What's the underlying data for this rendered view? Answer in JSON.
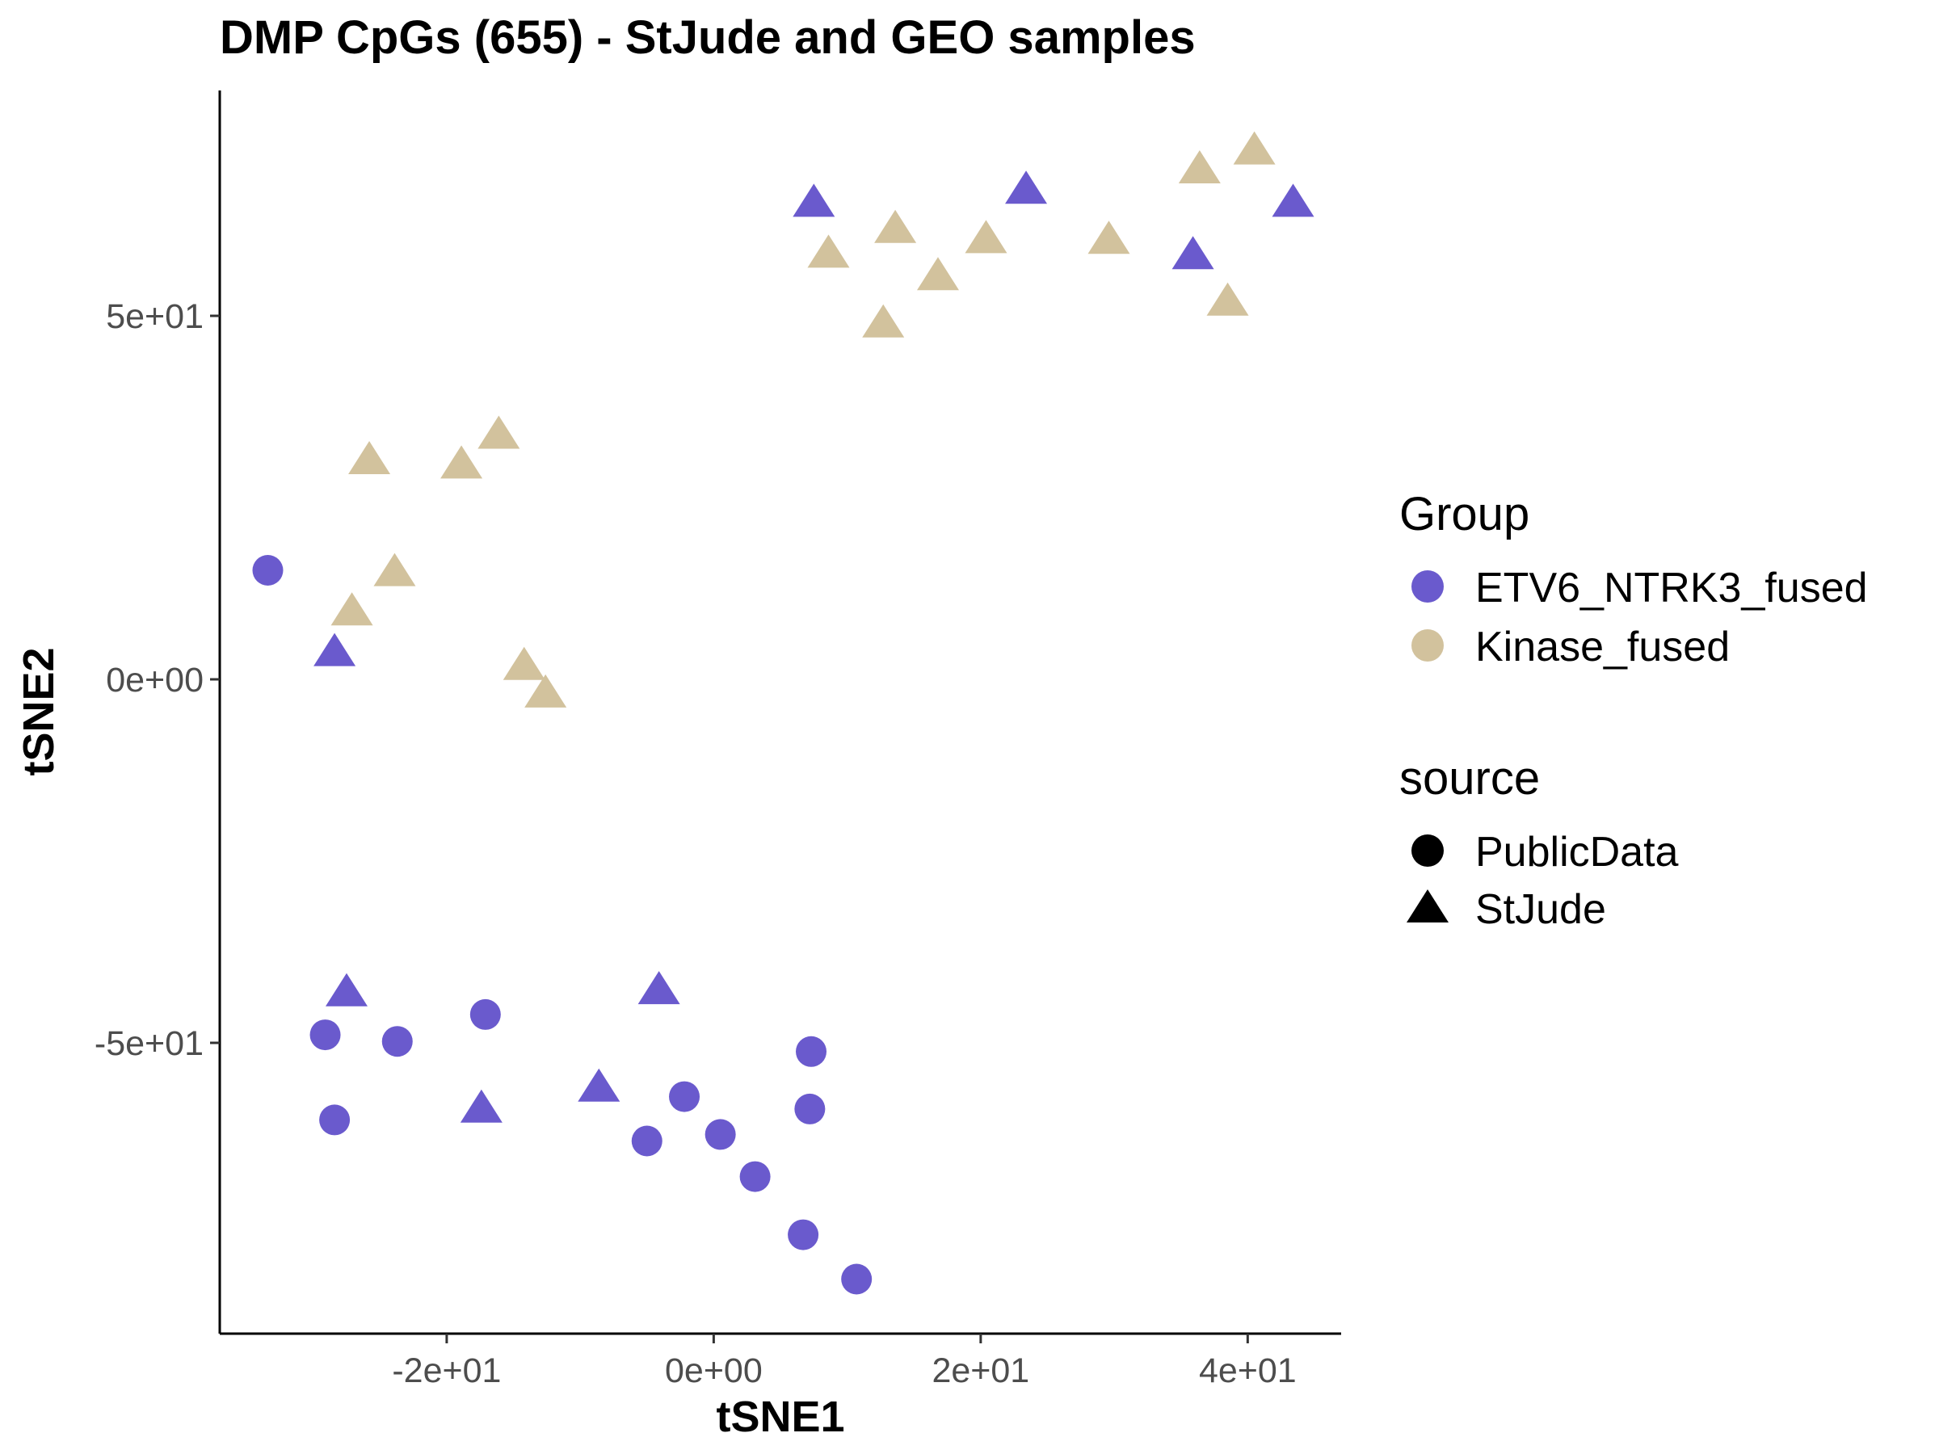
{
  "chart_data": {
    "type": "scatter",
    "title": "DMP CpGs (655) - StJude and GEO samples",
    "xlabel": "tSNE1",
    "ylabel": "tSNE2",
    "xlim": [
      -37,
      47
    ],
    "ylim": [
      -90,
      81
    ],
    "x_ticks": [
      -20,
      0,
      20,
      40
    ],
    "x_tick_labels": [
      "-2e+01",
      "0e+00",
      "2e+01",
      "4e+01"
    ],
    "y_ticks": [
      -50,
      0,
      50
    ],
    "y_tick_labels": [
      "-5e+01",
      "0e+00",
      "5e+01"
    ],
    "grid": false,
    "legend_position": "right",
    "legends": {
      "group": {
        "title": "Group",
        "entries": [
          {
            "label": "ETV6_NTRK3_fused",
            "color": "#6a5acd"
          },
          {
            "label": "Kinase_fused",
            "color": "#d2c29d"
          }
        ]
      },
      "source": {
        "title": "source",
        "entries": [
          {
            "label": "PublicData",
            "shape": "circle"
          },
          {
            "label": "StJude",
            "shape": "triangle"
          }
        ]
      }
    },
    "points": [
      {
        "x": 7.5,
        "y": 65.4,
        "group": "ETV6_NTRK3_fused",
        "source": "StJude"
      },
      {
        "x": 23.4,
        "y": 67.2,
        "group": "ETV6_NTRK3_fused",
        "source": "StJude"
      },
      {
        "x": 43.4,
        "y": 65.4,
        "group": "ETV6_NTRK3_fused",
        "source": "StJude"
      },
      {
        "x": 35.9,
        "y": 58.2,
        "group": "ETV6_NTRK3_fused",
        "source": "StJude"
      },
      {
        "x": -28.4,
        "y": 3.6,
        "group": "ETV6_NTRK3_fused",
        "source": "StJude"
      },
      {
        "x": -27.5,
        "y": -43.2,
        "group": "ETV6_NTRK3_fused",
        "source": "StJude"
      },
      {
        "x": -4.1,
        "y": -42.9,
        "group": "ETV6_NTRK3_fused",
        "source": "StJude"
      },
      {
        "x": -17.4,
        "y": -59.2,
        "group": "ETV6_NTRK3_fused",
        "source": "StJude"
      },
      {
        "x": -8.6,
        "y": -56.3,
        "group": "ETV6_NTRK3_fused",
        "source": "StJude"
      },
      {
        "x": -33.4,
        "y": 15.0,
        "group": "ETV6_NTRK3_fused",
        "source": "PublicData"
      },
      {
        "x": -29.1,
        "y": -48.9,
        "group": "ETV6_NTRK3_fused",
        "source": "PublicData"
      },
      {
        "x": -23.7,
        "y": -49.8,
        "group": "ETV6_NTRK3_fused",
        "source": "PublicData"
      },
      {
        "x": -17.1,
        "y": -46.1,
        "group": "ETV6_NTRK3_fused",
        "source": "PublicData"
      },
      {
        "x": -28.4,
        "y": -60.6,
        "group": "ETV6_NTRK3_fused",
        "source": "PublicData"
      },
      {
        "x": -2.2,
        "y": -57.4,
        "group": "ETV6_NTRK3_fused",
        "source": "PublicData"
      },
      {
        "x": -5.0,
        "y": -63.5,
        "group": "ETV6_NTRK3_fused",
        "source": "PublicData"
      },
      {
        "x": 0.5,
        "y": -62.6,
        "group": "ETV6_NTRK3_fused",
        "source": "PublicData"
      },
      {
        "x": 7.3,
        "y": -51.2,
        "group": "ETV6_NTRK3_fused",
        "source": "PublicData"
      },
      {
        "x": 7.2,
        "y": -59.1,
        "group": "ETV6_NTRK3_fused",
        "source": "PublicData"
      },
      {
        "x": 3.1,
        "y": -68.4,
        "group": "ETV6_NTRK3_fused",
        "source": "PublicData"
      },
      {
        "x": 6.7,
        "y": -76.4,
        "group": "ETV6_NTRK3_fused",
        "source": "PublicData"
      },
      {
        "x": 10.7,
        "y": -82.5,
        "group": "ETV6_NTRK3_fused",
        "source": "PublicData"
      },
      {
        "x": 8.6,
        "y": 58.4,
        "group": "Kinase_fused",
        "source": "StJude"
      },
      {
        "x": 13.6,
        "y": 61.8,
        "group": "Kinase_fused",
        "source": "StJude"
      },
      {
        "x": 12.7,
        "y": 48.8,
        "group": "Kinase_fused",
        "source": "StJude"
      },
      {
        "x": 16.8,
        "y": 55.3,
        "group": "Kinase_fused",
        "source": "StJude"
      },
      {
        "x": 20.4,
        "y": 60.4,
        "group": "Kinase_fused",
        "source": "StJude"
      },
      {
        "x": 29.6,
        "y": 60.3,
        "group": "Kinase_fused",
        "source": "StJude"
      },
      {
        "x": 36.4,
        "y": 70.0,
        "group": "Kinase_fused",
        "source": "StJude"
      },
      {
        "x": 40.5,
        "y": 72.6,
        "group": "Kinase_fused",
        "source": "StJude"
      },
      {
        "x": 38.5,
        "y": 51.8,
        "group": "Kinase_fused",
        "source": "StJude"
      },
      {
        "x": -25.8,
        "y": 30.0,
        "group": "Kinase_fused",
        "source": "StJude"
      },
      {
        "x": -18.9,
        "y": 29.4,
        "group": "Kinase_fused",
        "source": "StJude"
      },
      {
        "x": -16.1,
        "y": 33.5,
        "group": "Kinase_fused",
        "source": "StJude"
      },
      {
        "x": -23.9,
        "y": 14.6,
        "group": "Kinase_fused",
        "source": "StJude"
      },
      {
        "x": -27.1,
        "y": 9.2,
        "group": "Kinase_fused",
        "source": "StJude"
      },
      {
        "x": -14.2,
        "y": 1.7,
        "group": "Kinase_fused",
        "source": "StJude"
      },
      {
        "x": -12.6,
        "y": -2.1,
        "group": "Kinase_fused",
        "source": "StJude"
      }
    ]
  }
}
